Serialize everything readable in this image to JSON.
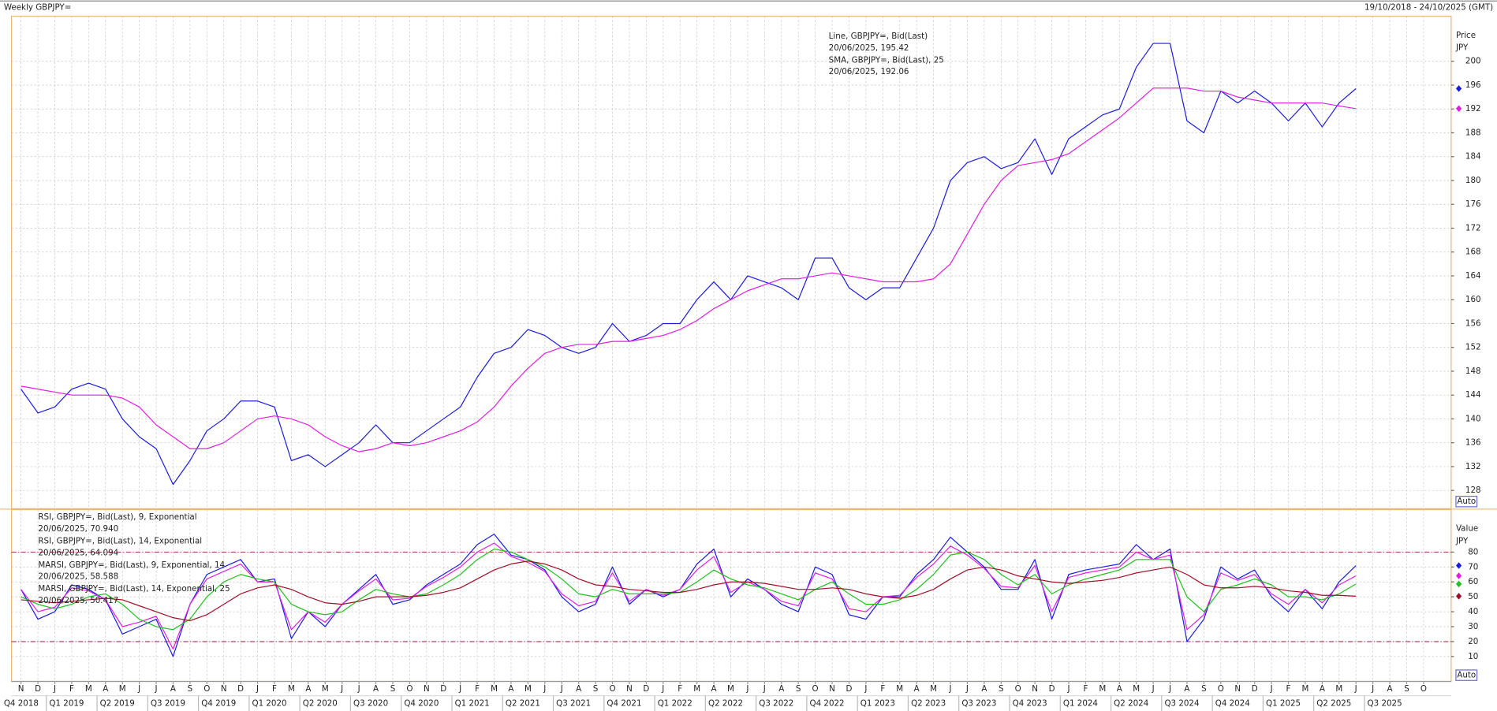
{
  "header": {
    "title": "Weekly GBPJPY=",
    "range": "19/10/2018 - 24/10/2025 (GMT)"
  },
  "chart_data": [
    {
      "type": "line",
      "axis_label": "Price",
      "unit": "JPY",
      "auto_button": "Auto",
      "ylim": [
        125.1,
        207.4
      ],
      "yticks": [
        128,
        132,
        136,
        140,
        144,
        148,
        152,
        156,
        160,
        164,
        168,
        172,
        176,
        180,
        184,
        188,
        192,
        196,
        200
      ],
      "grid": true,
      "series": [
        {
          "name": "Line, GBPJPY=, Bid(Last)",
          "detail": "20/06/2025, 195.42",
          "color": "#1c1ce0",
          "values": [
            145,
            141,
            142,
            145,
            146,
            145,
            140,
            137,
            135,
            129,
            133,
            138,
            140,
            143,
            143,
            142,
            133,
            134,
            132,
            134,
            136,
            139,
            136,
            136,
            138,
            140,
            142,
            147,
            151,
            152,
            155,
            154,
            152,
            151,
            152,
            156,
            153,
            154,
            156,
            156,
            160,
            163,
            160,
            164,
            163,
            162,
            160,
            167,
            167,
            162,
            160,
            162,
            162,
            167,
            172,
            180,
            183,
            184,
            182,
            183,
            187,
            181,
            187,
            189,
            191,
            192,
            199,
            203,
            203,
            190,
            188,
            195,
            193,
            195,
            193,
            190,
            193,
            189,
            193,
            195.42,
            null,
            null,
            null,
            null
          ]
        },
        {
          "name": "SMA, GBPJPY=, Bid(Last),  25",
          "detail": "20/06/2025, 192.06",
          "color": "#e020e0",
          "values": [
            145.5,
            145,
            144.5,
            144,
            144,
            144,
            143.5,
            142,
            139,
            137,
            135,
            135,
            136,
            138,
            140,
            140.5,
            140,
            139,
            137,
            135.5,
            134.5,
            135,
            136,
            135.5,
            136,
            137,
            138,
            139.5,
            142,
            145.5,
            148.5,
            151,
            152,
            152.5,
            152.5,
            153,
            153,
            153.5,
            154,
            155,
            156.5,
            158.5,
            160,
            161.5,
            162.5,
            163.5,
            163.5,
            164,
            164.5,
            164,
            163.5,
            163,
            163,
            163,
            163.5,
            166,
            171,
            176,
            180,
            182.5,
            183,
            183.5,
            184.5,
            186.5,
            188.5,
            190.5,
            193,
            195.5,
            195.5,
            195.5,
            195,
            195,
            194,
            193.5,
            193,
            193,
            193,
            193,
            192.5,
            192.06,
            null,
            null,
            null,
            null
          ]
        }
      ]
    },
    {
      "type": "line",
      "axis_label": "Value",
      "unit": "JPY",
      "auto_button": "Auto",
      "ylim": [
        -6.7,
        107.8
      ],
      "yticks": [
        10,
        20,
        30,
        40,
        50,
        60,
        70,
        80
      ],
      "grid": true,
      "reference_lines": [
        20,
        80
      ],
      "categories": [
        "N",
        "D",
        "J",
        "F",
        "M",
        "A",
        "M",
        "J",
        "J",
        "A",
        "S",
        "O",
        "N",
        "D",
        "J",
        "F",
        "M",
        "A",
        "M",
        "J",
        "J",
        "A",
        "S",
        "O",
        "N",
        "D",
        "J",
        "F",
        "M",
        "A",
        "M",
        "J",
        "J",
        "A",
        "S",
        "O",
        "N",
        "D",
        "J",
        "F",
        "M",
        "A",
        "M",
        "J",
        "J",
        "A",
        "S",
        "O",
        "N",
        "D",
        "J",
        "F",
        "M",
        "A",
        "M",
        "J",
        "J",
        "A",
        "S",
        "O",
        "N",
        "D",
        "J",
        "F",
        "M",
        "A",
        "M",
        "J",
        "J",
        "A",
        "S",
        "O",
        "N",
        "D",
        "J",
        "F",
        "M",
        "A",
        "M",
        "J",
        "J",
        "A",
        "S",
        "O"
      ],
      "quarters": [
        "Q4 2018",
        "Q1 2019",
        "Q2 2019",
        "Q3 2019",
        "Q4 2019",
        "Q1 2020",
        "Q2 2020",
        "Q3 2020",
        "Q4 2020",
        "Q1 2021",
        "Q2 2021",
        "Q3 2021",
        "Q4 2021",
        "Q1 2022",
        "Q2 2022",
        "Q3 2022",
        "Q4 2022",
        "Q1 2023",
        "Q2 2023",
        "Q3 2023",
        "Q4 2023",
        "Q1 2024",
        "Q2 2024",
        "Q3 2024",
        "Q4 2024",
        "Q1 2025",
        "Q2 2025",
        "Q3 2025"
      ],
      "series": [
        {
          "name": "RSI, GBPJPY=, Bid(Last),  9, Exponential",
          "detail": "20/06/2025, 70.940",
          "color": "#1c1ce0",
          "values": [
            55,
            35,
            40,
            58,
            55,
            48,
            25,
            30,
            35,
            10,
            45,
            65,
            70,
            75,
            60,
            62,
            22,
            40,
            30,
            45,
            55,
            65,
            45,
            48,
            58,
            65,
            72,
            85,
            92,
            78,
            75,
            68,
            50,
            40,
            45,
            70,
            45,
            55,
            50,
            55,
            72,
            82,
            50,
            62,
            55,
            45,
            40,
            70,
            65,
            38,
            35,
            50,
            50,
            65,
            75,
            90,
            80,
            70,
            55,
            55,
            75,
            35,
            65,
            68,
            70,
            72,
            85,
            75,
            82,
            20,
            35,
            70,
            62,
            68,
            50,
            40,
            55,
            42,
            60,
            70.94,
            null,
            null,
            null,
            null
          ]
        },
        {
          "name": "RSI, GBPJPY=, Bid(Last),  14, Exponential",
          "detail": "20/06/2025, 64.094",
          "color": "#e020e0",
          "values": [
            55,
            40,
            43,
            56,
            54,
            48,
            30,
            33,
            37,
            15,
            45,
            62,
            67,
            72,
            60,
            60,
            28,
            40,
            33,
            45,
            54,
            62,
            48,
            49,
            57,
            63,
            70,
            80,
            86,
            77,
            73,
            67,
            52,
            44,
            47,
            66,
            47,
            55,
            51,
            55,
            68,
            77,
            53,
            60,
            55,
            47,
            44,
            66,
            62,
            42,
            40,
            50,
            51,
            63,
            72,
            84,
            78,
            69,
            57,
            56,
            71,
            40,
            63,
            66,
            68,
            70,
            80,
            75,
            78,
            28,
            38,
            66,
            61,
            65,
            52,
            45,
            55,
            46,
            58,
            64.094,
            null,
            null,
            null,
            null
          ]
        },
        {
          "name": "MARSI, GBPJPY=, Bid(Last),  9, Exponential, 14",
          "detail": "20/06/2025, 58.588",
          "color": "#20c020",
          "values": [
            50,
            45,
            42,
            45,
            50,
            52,
            45,
            35,
            30,
            28,
            35,
            50,
            60,
            65,
            62,
            60,
            45,
            40,
            38,
            40,
            48,
            55,
            52,
            50,
            52,
            58,
            65,
            75,
            82,
            80,
            75,
            70,
            62,
            52,
            50,
            55,
            52,
            52,
            52,
            53,
            60,
            68,
            62,
            58,
            56,
            52,
            48,
            55,
            60,
            52,
            45,
            45,
            48,
            55,
            65,
            78,
            80,
            75,
            65,
            58,
            65,
            52,
            58,
            62,
            65,
            68,
            75,
            75,
            75,
            50,
            40,
            55,
            58,
            62,
            58,
            50,
            50,
            48,
            52,
            58.588,
            null,
            null,
            null,
            null
          ]
        },
        {
          "name": "MARSI, GBPJPY=, Bid(Last),  14, Exponential, 25",
          "detail": "20/06/2025, 50.417",
          "color": "#a0102a",
          "values": [
            48,
            47,
            46,
            47,
            48,
            49,
            48,
            44,
            40,
            36,
            34,
            38,
            45,
            52,
            56,
            58,
            55,
            50,
            46,
            45,
            47,
            50,
            50,
            50,
            51,
            53,
            56,
            62,
            68,
            72,
            74,
            72,
            68,
            62,
            58,
            57,
            55,
            54,
            53,
            53,
            55,
            58,
            60,
            60,
            59,
            57,
            55,
            55,
            56,
            55,
            52,
            50,
            49,
            51,
            55,
            62,
            68,
            70,
            68,
            64,
            62,
            60,
            59,
            60,
            61,
            63,
            66,
            68,
            70,
            65,
            58,
            56,
            56,
            57,
            56,
            54,
            53,
            51,
            51,
            50.417,
            null,
            null,
            null,
            null
          ]
        }
      ]
    }
  ]
}
